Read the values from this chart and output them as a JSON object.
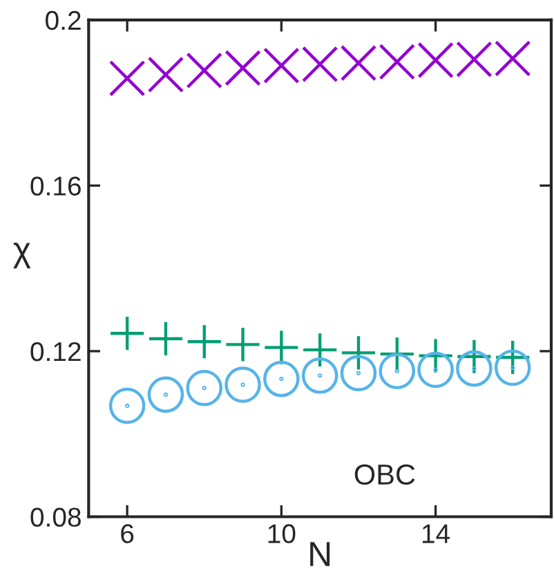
{
  "chart_data": {
    "type": "scatter",
    "xlabel": "N",
    "ylabel": "χ",
    "x": [
      6,
      7,
      8,
      9,
      10,
      11,
      12,
      13,
      14,
      15,
      16
    ],
    "series": [
      {
        "color": "#9400d3",
        "marker": "x",
        "values": [
          0.1859,
          0.1868,
          0.1878,
          0.1884,
          0.189,
          0.1893,
          0.1896,
          0.1899,
          0.1903,
          0.1905,
          0.1907
        ]
      },
      {
        "color": "#009e73",
        "marker": "cross",
        "values": [
          0.1243,
          0.123,
          0.1223,
          0.1216,
          0.1209,
          0.1203,
          0.1196,
          0.1193,
          0.1189,
          0.1187,
          0.1185
        ]
      },
      {
        "color": "#56b4e9",
        "marker": "circle",
        "values": [
          0.1068,
          0.1095,
          0.1111,
          0.1119,
          0.1133,
          0.1141,
          0.1147,
          0.1152,
          0.1155,
          0.1158,
          0.116
        ]
      }
    ],
    "annotations": [
      "OBC"
    ],
    "xlim": [
      5,
      17
    ],
    "ylim": [
      0.08,
      0.2
    ],
    "xticks": [
      6,
      10,
      14
    ],
    "yticks": [
      0.08,
      0.12,
      0.16,
      0.2
    ],
    "grid": false,
    "legend": false
  }
}
